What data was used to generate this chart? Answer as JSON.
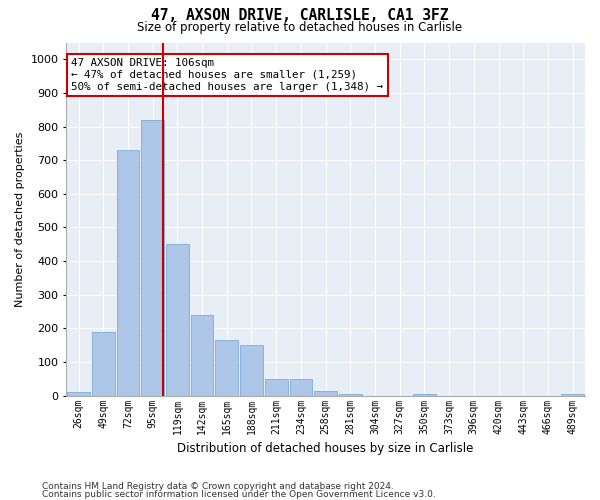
{
  "title": "47, AXSON DRIVE, CARLISLE, CA1 3FZ",
  "subtitle": "Size of property relative to detached houses in Carlisle",
  "xlabel": "Distribution of detached houses by size in Carlisle",
  "ylabel": "Number of detached properties",
  "bin_labels": [
    "26sqm",
    "49sqm",
    "72sqm",
    "95sqm",
    "119sqm",
    "142sqm",
    "165sqm",
    "188sqm",
    "211sqm",
    "234sqm",
    "258sqm",
    "281sqm",
    "304sqm",
    "327sqm",
    "350sqm",
    "373sqm",
    "396sqm",
    "420sqm",
    "443sqm",
    "466sqm",
    "489sqm"
  ],
  "bar_heights": [
    10,
    190,
    730,
    820,
    450,
    240,
    165,
    150,
    50,
    50,
    15,
    5,
    0,
    0,
    5,
    0,
    0,
    0,
    0,
    0,
    5
  ],
  "bar_color": "#aec6e8",
  "bar_edgecolor": "#7aadd4",
  "vline_x_idx": 3,
  "vline_color": "#cc0000",
  "ylim": [
    0,
    1050
  ],
  "annotation_text": "47 AXSON DRIVE: 106sqm\n← 47% of detached houses are smaller (1,259)\n50% of semi-detached houses are larger (1,348) →",
  "annotation_box_facecolor": "#ffffff",
  "annotation_box_edgecolor": "#cc0000",
  "background_color": "#e8eef5",
  "footer1": "Contains HM Land Registry data © Crown copyright and database right 2024.",
  "footer2": "Contains public sector information licensed under the Open Government Licence v3.0."
}
